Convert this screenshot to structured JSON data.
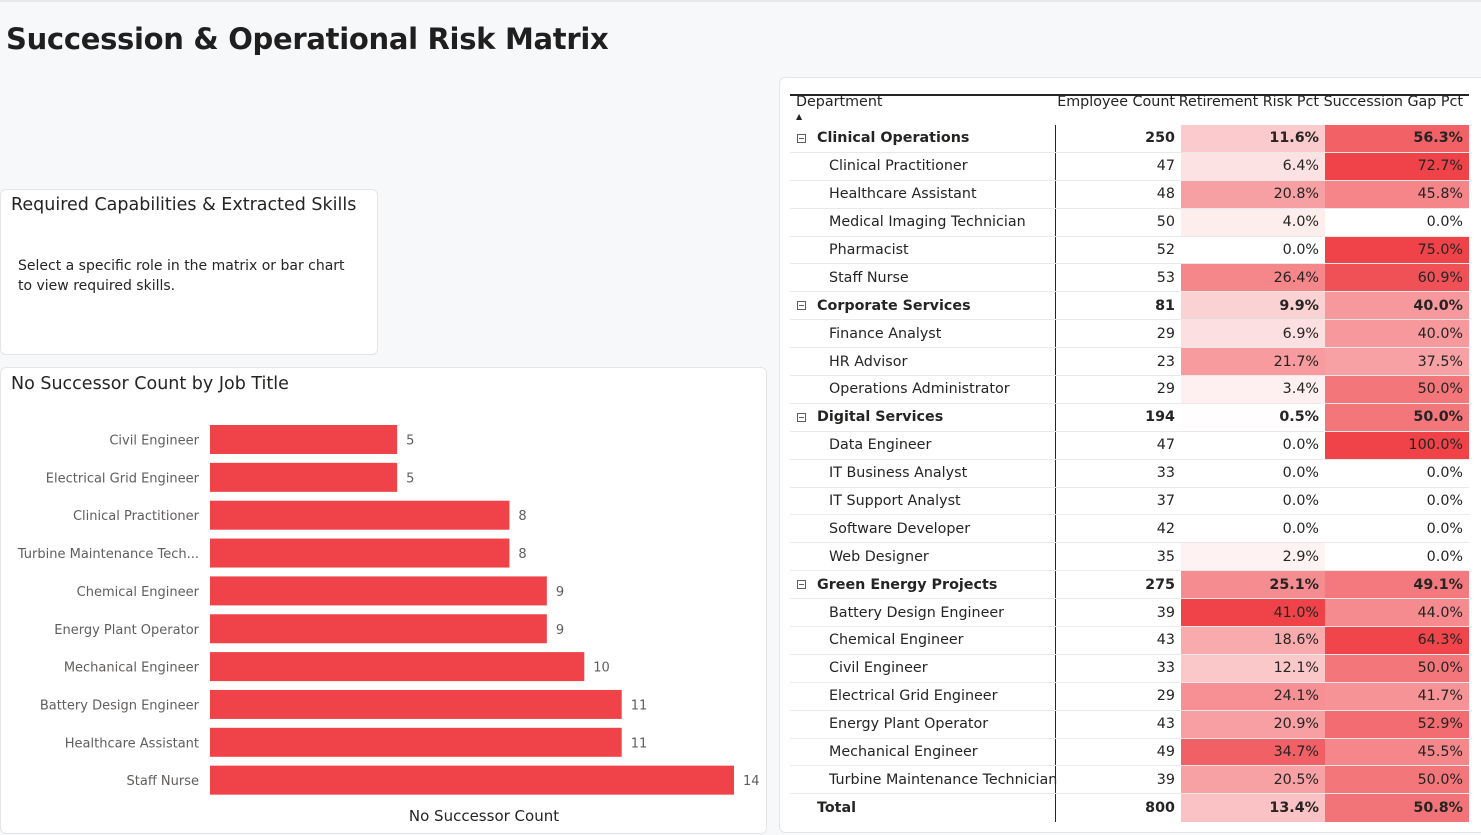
{
  "page_title": "Succession & Operational Risk Matrix",
  "skills_card": {
    "title": "Required Capabilities & Extracted Skills",
    "body": "Select a specific role in the matrix or bar chart to view required skills."
  },
  "bar_chart": {
    "title": "No Successor Count by Job Title",
    "bar_color": "#ef4349"
  },
  "chart_data": {
    "type": "bar",
    "orientation": "horizontal",
    "title": "No Successor Count by Job Title",
    "xlabel": "No Successor Count",
    "ylabel": "",
    "categories": [
      "Civil Engineer",
      "Electrical Grid Engineer",
      "Clinical Practitioner",
      "Turbine Maintenance Tech...",
      "Chemical Engineer",
      "Energy Plant Operator",
      "Mechanical Engineer",
      "Battery Design Engineer",
      "Healthcare Assistant",
      "Staff Nurse"
    ],
    "values": [
      5,
      5,
      8,
      8,
      9,
      9,
      10,
      11,
      11,
      14
    ],
    "xlim": [
      0,
      14
    ],
    "data_labels": true,
    "grid": false
  },
  "matrix": {
    "headers": {
      "department": "Department",
      "employee_count": "Employee Count",
      "retirement_risk": "Retirement Risk Pct",
      "succession_gap": "Succession Gap Pct"
    },
    "heat_color": "#ef4349",
    "rows": [
      {
        "type": "group",
        "name": "Clinical Operations",
        "emp": "250",
        "ret": "11.6%",
        "suc": "56.3%",
        "ret_v": 11.6,
        "suc_v": 56.3
      },
      {
        "type": "child",
        "name": "Clinical Practitioner",
        "emp": "47",
        "ret": "6.4%",
        "suc": "72.7%",
        "ret_v": 6.4,
        "suc_v": 72.7
      },
      {
        "type": "child",
        "name": "Healthcare Assistant",
        "emp": "48",
        "ret": "20.8%",
        "suc": "45.8%",
        "ret_v": 20.8,
        "suc_v": 45.8
      },
      {
        "type": "child",
        "name": "Medical Imaging Technician",
        "emp": "50",
        "ret": "4.0%",
        "suc": "0.0%",
        "ret_v": 4.0,
        "suc_v": 0.0
      },
      {
        "type": "child",
        "name": "Pharmacist",
        "emp": "52",
        "ret": "0.0%",
        "suc": "75.0%",
        "ret_v": 0.0,
        "suc_v": 75.0
      },
      {
        "type": "child",
        "name": "Staff Nurse",
        "emp": "53",
        "ret": "26.4%",
        "suc": "60.9%",
        "ret_v": 26.4,
        "suc_v": 60.9
      },
      {
        "type": "group",
        "name": "Corporate Services",
        "emp": "81",
        "ret": "9.9%",
        "suc": "40.0%",
        "ret_v": 9.9,
        "suc_v": 40.0
      },
      {
        "type": "child",
        "name": "Finance Analyst",
        "emp": "29",
        "ret": "6.9%",
        "suc": "40.0%",
        "ret_v": 6.9,
        "suc_v": 40.0
      },
      {
        "type": "child",
        "name": "HR Advisor",
        "emp": "23",
        "ret": "21.7%",
        "suc": "37.5%",
        "ret_v": 21.7,
        "suc_v": 37.5
      },
      {
        "type": "child",
        "name": "Operations Administrator",
        "emp": "29",
        "ret": "3.4%",
        "suc": "50.0%",
        "ret_v": 3.4,
        "suc_v": 50.0
      },
      {
        "type": "group",
        "name": "Digital Services",
        "emp": "194",
        "ret": "0.5%",
        "suc": "50.0%",
        "ret_v": 0.5,
        "suc_v": 50.0
      },
      {
        "type": "child",
        "name": "Data Engineer",
        "emp": "47",
        "ret": "0.0%",
        "suc": "100.0%",
        "ret_v": 0.0,
        "suc_v": 100.0
      },
      {
        "type": "child",
        "name": "IT Business Analyst",
        "emp": "33",
        "ret": "0.0%",
        "suc": "0.0%",
        "ret_v": 0.0,
        "suc_v": 0.0
      },
      {
        "type": "child",
        "name": "IT Support Analyst",
        "emp": "37",
        "ret": "0.0%",
        "suc": "0.0%",
        "ret_v": 0.0,
        "suc_v": 0.0
      },
      {
        "type": "child",
        "name": "Software Developer",
        "emp": "42",
        "ret": "0.0%",
        "suc": "0.0%",
        "ret_v": 0.0,
        "suc_v": 0.0
      },
      {
        "type": "child",
        "name": "Web Designer",
        "emp": "35",
        "ret": "2.9%",
        "suc": "0.0%",
        "ret_v": 2.9,
        "suc_v": 0.0
      },
      {
        "type": "group",
        "name": "Green Energy Projects",
        "emp": "275",
        "ret": "25.1%",
        "suc": "49.1%",
        "ret_v": 25.1,
        "suc_v": 49.1
      },
      {
        "type": "child",
        "name": "Battery Design Engineer",
        "emp": "39",
        "ret": "41.0%",
        "suc": "44.0%",
        "ret_v": 41.0,
        "suc_v": 44.0
      },
      {
        "type": "child",
        "name": "Chemical Engineer",
        "emp": "43",
        "ret": "18.6%",
        "suc": "64.3%",
        "ret_v": 18.6,
        "suc_v": 64.3
      },
      {
        "type": "child",
        "name": "Civil Engineer",
        "emp": "33",
        "ret": "12.1%",
        "suc": "50.0%",
        "ret_v": 12.1,
        "suc_v": 50.0
      },
      {
        "type": "child",
        "name": "Electrical Grid Engineer",
        "emp": "29",
        "ret": "24.1%",
        "suc": "41.7%",
        "ret_v": 24.1,
        "suc_v": 41.7
      },
      {
        "type": "child",
        "name": "Energy Plant Operator",
        "emp": "43",
        "ret": "20.9%",
        "suc": "52.9%",
        "ret_v": 20.9,
        "suc_v": 52.9
      },
      {
        "type": "child",
        "name": "Mechanical Engineer",
        "emp": "49",
        "ret": "34.7%",
        "suc": "45.5%",
        "ret_v": 34.7,
        "suc_v": 45.5
      },
      {
        "type": "child",
        "name": "Turbine Maintenance Technician",
        "emp": "39",
        "ret": "20.5%",
        "suc": "50.0%",
        "ret_v": 20.5,
        "suc_v": 50.0
      },
      {
        "type": "total",
        "name": "Total",
        "emp": "800",
        "ret": "13.4%",
        "suc": "50.8%",
        "ret_v": 13.4,
        "suc_v": 50.8
      }
    ]
  }
}
